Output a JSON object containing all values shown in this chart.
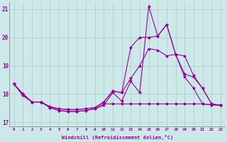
{
  "xlabel": "Windchill (Refroidissement éolien,°C)",
  "background_color": "#cce8e8",
  "grid_color": "#aacccc",
  "line_color": "#990099",
  "xlim": [
    -0.5,
    23.5
  ],
  "ylim": [
    16.85,
    21.25
  ],
  "xticks": [
    0,
    1,
    2,
    3,
    4,
    5,
    6,
    7,
    8,
    9,
    10,
    11,
    12,
    13,
    14,
    15,
    16,
    17,
    18,
    19,
    20,
    21,
    22,
    23
  ],
  "yticks": [
    17,
    18,
    19,
    20,
    21
  ],
  "line1_x": [
    0,
    1,
    2,
    3,
    4,
    5,
    6,
    7,
    8,
    9,
    10,
    11,
    12,
    13,
    14,
    15,
    16,
    17,
    18,
    19,
    20,
    21,
    22,
    23
  ],
  "line1_y": [
    18.35,
    17.95,
    17.72,
    17.72,
    17.52,
    17.42,
    17.38,
    17.38,
    17.42,
    17.48,
    17.6,
    18.05,
    17.75,
    18.45,
    18.05,
    21.1,
    20.05,
    20.45,
    19.4,
    18.6,
    18.2,
    17.65,
    17.62,
    17.6
  ],
  "line2_x": [
    0,
    1,
    2,
    3,
    4,
    5,
    6,
    7,
    8,
    9,
    10,
    11,
    12,
    13,
    14,
    15,
    16,
    17,
    18,
    19,
    20,
    21,
    22,
    23
  ],
  "line2_y": [
    18.35,
    17.95,
    17.72,
    17.72,
    17.52,
    17.42,
    17.38,
    17.38,
    17.42,
    17.48,
    17.65,
    17.65,
    17.65,
    17.65,
    17.65,
    17.65,
    17.65,
    17.65,
    17.65,
    17.65,
    17.65,
    17.65,
    17.62,
    17.6
  ],
  "line3_x": [
    0,
    1,
    2,
    3,
    4,
    5,
    6,
    7,
    8,
    9,
    10,
    11,
    12,
    13,
    14,
    15,
    16,
    17,
    18,
    19,
    20,
    21,
    22,
    23
  ],
  "line3_y": [
    18.35,
    18.0,
    17.72,
    17.72,
    17.55,
    17.48,
    17.45,
    17.45,
    17.48,
    17.52,
    17.72,
    18.1,
    18.05,
    18.55,
    19.0,
    19.6,
    19.55,
    19.35,
    19.4,
    19.35,
    18.65,
    18.2,
    17.65,
    17.6
  ],
  "line4_x": [
    0,
    1,
    2,
    3,
    4,
    5,
    6,
    7,
    8,
    9,
    10,
    11,
    12,
    13,
    14,
    15,
    16,
    17,
    18,
    19,
    20,
    21,
    22,
    23
  ],
  "line4_y": [
    18.35,
    18.0,
    17.72,
    17.72,
    17.55,
    17.48,
    17.45,
    17.45,
    17.48,
    17.52,
    17.72,
    18.1,
    18.05,
    19.65,
    20.0,
    20.0,
    20.05,
    20.45,
    19.4,
    18.7,
    18.6,
    18.2,
    17.65,
    17.6
  ]
}
